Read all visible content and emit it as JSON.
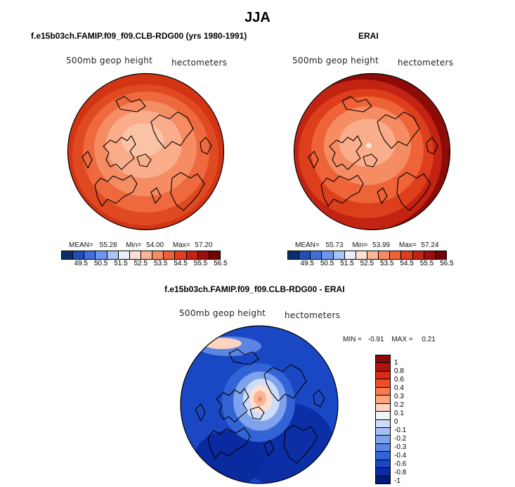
{
  "main_title": "JJA",
  "panels": {
    "model": {
      "title": "f.e15b03ch.FAMIP.f09_f09.CLB-RDG00 (yrs 1980-1991)",
      "field_label": "500mb geop height",
      "units": "hectometers",
      "mean_label": "MEAN=",
      "mean": "55.28",
      "min_label": "Min=",
      "min": "54.00",
      "max_label": "Max=",
      "max": "57.20"
    },
    "obs": {
      "title": "ERAI",
      "field_label": "500mb geop height",
      "units": "hectometers",
      "mean_label": "MEAN=",
      "mean": "55.73",
      "min_label": "Min=",
      "min": "53.99",
      "max_label": "Max=",
      "max": "57.24"
    },
    "diff": {
      "title": "f.e15b03ch.FAMIP.f09_f09.CLB-RDG00 - ERAI",
      "field_label": "500mb geop height",
      "units": "hectometers",
      "min_label": "MIN =",
      "min": "-0.91",
      "max_label": "MAX =",
      "max": "0.21"
    }
  },
  "horizontal_colorbar": {
    "colors": [
      "#08306b",
      "#1f4fb4",
      "#3f6fdc",
      "#6b95ee",
      "#a8c4f5",
      "#e8eefc",
      "#fde0d2",
      "#f9b596",
      "#f58a64",
      "#ee6138",
      "#e03c1d",
      "#c42212",
      "#9e0e0a",
      "#700404"
    ],
    "labels": [
      "49.5",
      "50.5",
      "51.5",
      "52.5",
      "53.5",
      "54.5",
      "55.5",
      "56.5"
    ]
  },
  "vertical_colorbar": {
    "colors": [
      "#8a0a0a",
      "#b3130f",
      "#d92b17",
      "#ee4f25",
      "#f77b4c",
      "#fba57f",
      "#fdd3bf",
      "#f4f4f8",
      "#cddcf9",
      "#a4bff3",
      "#7ea3ec",
      "#5a85e3",
      "#3264d6",
      "#1847c4",
      "#0a2aa8",
      "#021a7c"
    ],
    "labels": [
      "1",
      "0.8",
      "0.6",
      "0.4",
      "0.3",
      "0.2",
      "0.1",
      "0",
      "-0.1",
      "-0.2",
      "-0.3",
      "-0.4",
      "-0.6",
      "-0.8",
      "-1"
    ]
  }
}
